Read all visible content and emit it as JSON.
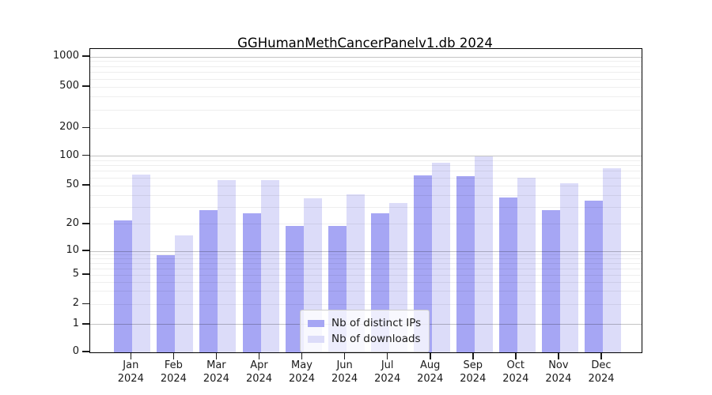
{
  "chart_data": {
    "type": "bar",
    "title": "GGHumanMethCancerPanelv1.db 2024",
    "categories": [
      "Jan 2024",
      "Feb 2024",
      "Mar 2024",
      "Apr 2024",
      "May 2024",
      "Jun 2024",
      "Jul 2024",
      "Aug 2024",
      "Sep 2024",
      "Oct 2024",
      "Nov 2024",
      "Dec 2024"
    ],
    "series": [
      {
        "name": "Nb of distinct IPs",
        "color": "#a6a6f4",
        "values": [
          22,
          9,
          28,
          26,
          19,
          19,
          26,
          64,
          63,
          38,
          28,
          35
        ]
      },
      {
        "name": "Nb of downloads",
        "color": "#dcdcf9",
        "values": [
          65,
          15,
          57,
          57,
          37,
          41,
          33,
          85,
          100,
          60,
          53,
          75
        ]
      }
    ],
    "y_axis": {
      "scale": "symlog",
      "ticks": [
        0,
        1,
        2,
        5,
        10,
        20,
        50,
        100,
        200,
        500,
        1000
      ],
      "major_grid_ticks": [
        1,
        10,
        100,
        1000
      ],
      "top_value": 1250
    },
    "legend": {
      "position": "inside-bottom-center",
      "items": [
        "Nb of distinct IPs",
        "Nb of downloads"
      ]
    },
    "grid": {
      "major": "on",
      "minor": "on"
    },
    "axis_color": "#000000",
    "grid_major_color": "#c4c4c4",
    "grid_minor_color": "#eeeeee"
  }
}
